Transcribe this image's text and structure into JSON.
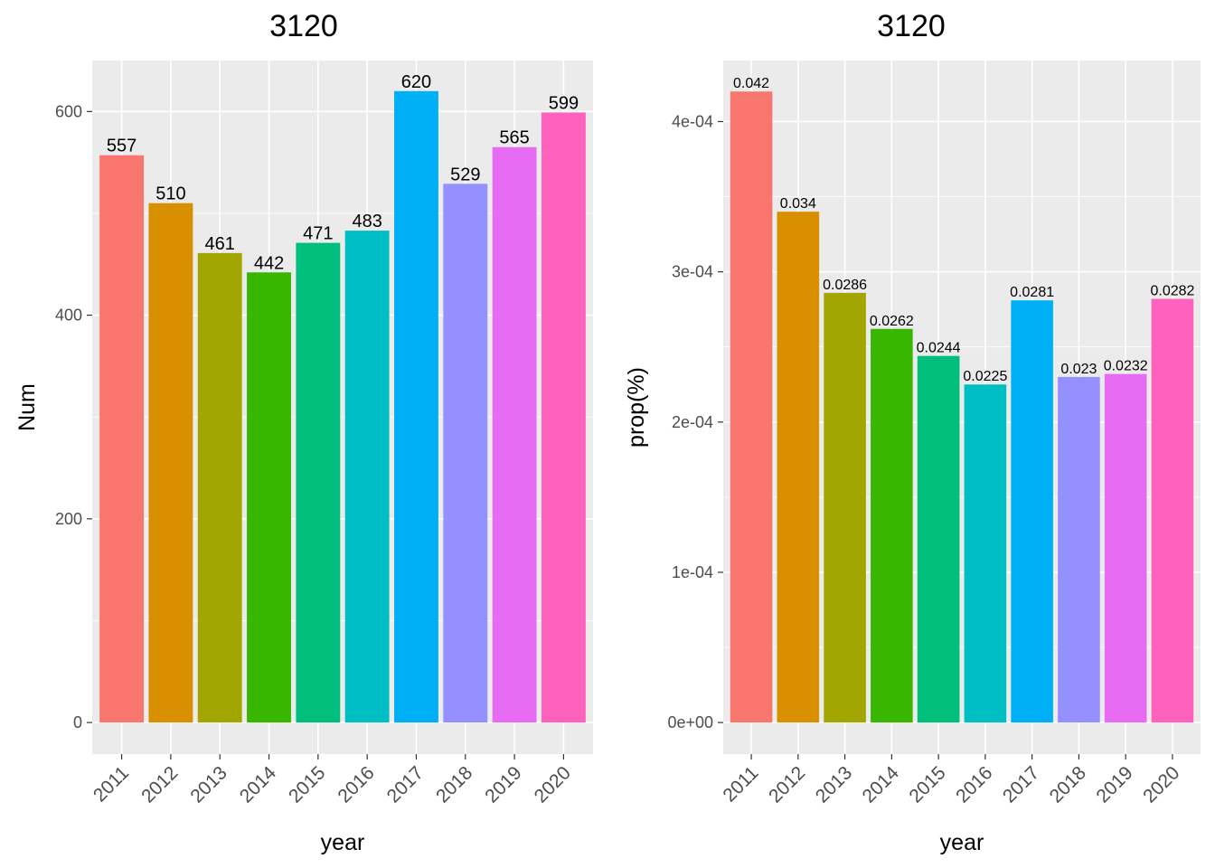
{
  "chart_data": [
    {
      "type": "bar",
      "title": "3120",
      "xlabel": "year",
      "ylabel": "Num",
      "categories": [
        "2011",
        "2012",
        "2013",
        "2014",
        "2015",
        "2016",
        "2017",
        "2018",
        "2019",
        "2020"
      ],
      "values": [
        557,
        510,
        461,
        442,
        471,
        483,
        620,
        529,
        565,
        599
      ],
      "data_labels": [
        "557",
        "510",
        "461",
        "442",
        "471",
        "483",
        "620",
        "529",
        "565",
        "599"
      ],
      "yticks": [
        0,
        200,
        400,
        600
      ],
      "ytick_labels": [
        "0",
        "200",
        "400",
        "600"
      ],
      "ylim": [
        -31,
        650
      ],
      "grid": true,
      "legend": "none",
      "colors": [
        "#F8766D",
        "#D89000",
        "#A3A500",
        "#39B600",
        "#00BF7D",
        "#00BFC4",
        "#00B0F6",
        "#9590FF",
        "#E76BF3",
        "#FF62BC"
      ]
    },
    {
      "type": "bar",
      "title": "3120",
      "xlabel": "year",
      "ylabel": "prop(%)",
      "categories": [
        "2011",
        "2012",
        "2013",
        "2014",
        "2015",
        "2016",
        "2017",
        "2018",
        "2019",
        "2020"
      ],
      "values": [
        0.00042,
        0.00034,
        0.000286,
        0.000262,
        0.000244,
        0.000225,
        0.000281,
        0.00023,
        0.000232,
        0.000282
      ],
      "data_labels": [
        "0.042",
        "0.034",
        "0.0286",
        "0.0262",
        "0.0244",
        "0.0225",
        "0.0281",
        "0.023",
        "0.0232",
        "0.0282"
      ],
      "yticks": [
        0,
        0.0001,
        0.0002,
        0.0003,
        0.0004
      ],
      "ytick_labels": [
        "0e+00",
        "1e-04",
        "2e-04",
        "3e-04",
        "4e-04"
      ],
      "ylim": [
        -2.1e-05,
        0.0004406
      ],
      "grid": true,
      "legend": "none",
      "colors": [
        "#F8766D",
        "#D89000",
        "#A3A500",
        "#39B600",
        "#00BF7D",
        "#00BFC4",
        "#00B0F6",
        "#9590FF",
        "#E76BF3",
        "#FF62BC"
      ]
    }
  ]
}
